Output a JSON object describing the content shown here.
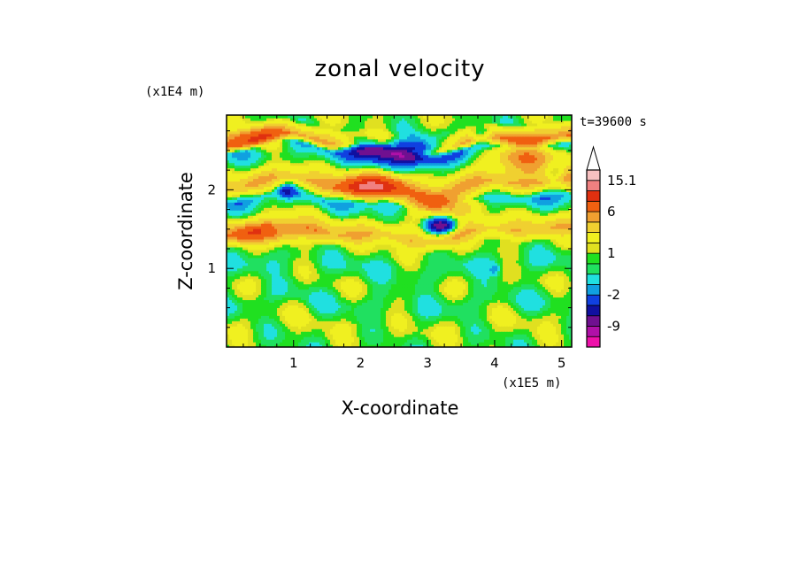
{
  "chart_data": {
    "type": "heatmap",
    "title": "zonal velocity",
    "xlabel": "X-coordinate",
    "ylabel": "Z-coordinate",
    "x_unit": "(x1E5 m)",
    "y_unit": "(x1E4 m)",
    "time_label": "t=39600 s",
    "xlim": [
      0,
      5.15
    ],
    "ylim": [
      0,
      2.95
    ],
    "xticks": [
      1,
      2,
      3,
      4,
      5
    ],
    "yticks": [
      1,
      2
    ],
    "colorbar": {
      "labels": [
        "15.1",
        "6",
        "1",
        "-2",
        "-9"
      ],
      "label_values": [
        15.1,
        6,
        1,
        -2,
        -9
      ],
      "levels": [
        -14,
        -12,
        -9,
        -6,
        -4,
        -2,
        -1,
        0,
        0.5,
        1,
        1.5,
        3,
        4.5,
        6,
        9,
        12,
        15.1
      ],
      "colors": [
        "#ee10aa",
        "#b010a8",
        "#701090",
        "#1010a0",
        "#1040e0",
        "#10a0e0",
        "#20e0e0",
        "#20e060",
        "#20e020",
        "#e0e020",
        "#f0f020",
        "#f0d030",
        "#f0a030",
        "#f06010",
        "#e03010",
        "#f08080",
        "#f8c0c0"
      ],
      "extend_max": true
    },
    "bands": [
      {
        "z": 0.05,
        "v": 0.7
      },
      {
        "z": 0.3,
        "v": 1.2
      },
      {
        "z": 0.55,
        "v": 0.2
      },
      {
        "z": 0.8,
        "v": 1.0
      },
      {
        "z": 1.05,
        "v": 0.1
      },
      {
        "z": 1.3,
        "v": 1.2
      },
      {
        "z": 1.45,
        "v": 4.5
      },
      {
        "z": 1.65,
        "v": 1.2
      },
      {
        "z": 1.85,
        "v": -1.2
      },
      {
        "z": 2.05,
        "v": 5.0
      },
      {
        "z": 2.25,
        "v": 1.2
      },
      {
        "z": 2.5,
        "v": -1.5
      },
      {
        "z": 2.6,
        "v": 5.5
      },
      {
        "z": 2.8,
        "v": 0.8
      },
      {
        "z": 2.95,
        "v": 1.0
      }
    ],
    "features": [
      {
        "x": 2.7,
        "z": 2.5,
        "v": -10,
        "sx": 0.32,
        "sz": 0.1
      },
      {
        "x": 2.1,
        "z": 2.55,
        "v": -6,
        "sx": 0.2,
        "sz": 0.1
      },
      {
        "x": 3.2,
        "z": 1.55,
        "v": -9,
        "sx": 0.15,
        "sz": 0.07
      },
      {
        "x": 3.25,
        "z": 1.8,
        "v": 7,
        "sx": 0.3,
        "sz": 0.1
      },
      {
        "x": 2.2,
        "z": 2.05,
        "v": 8,
        "sx": 0.35,
        "sz": 0.1
      },
      {
        "x": 4.5,
        "z": 2.45,
        "v": 6,
        "sx": 0.4,
        "sz": 0.14
      },
      {
        "x": 3.8,
        "z": 2.7,
        "v": -5,
        "sx": 0.12,
        "sz": 0.08
      },
      {
        "x": 0.9,
        "z": 2.0,
        "v": -4,
        "sx": 0.08,
        "sz": 0.06
      },
      {
        "x": 0.6,
        "z": 1.45,
        "v": 5,
        "sx": 0.45,
        "sz": 0.08
      },
      {
        "x": 4.9,
        "z": 2.2,
        "v": -3,
        "sx": 0.1,
        "sz": 0.1
      },
      {
        "x": 0.4,
        "z": 2.65,
        "v": 5,
        "sx": 0.3,
        "sz": 0.1
      },
      {
        "x": 4.0,
        "z": 1.0,
        "v": -2,
        "sx": 0.05,
        "sz": 0.05
      }
    ]
  }
}
